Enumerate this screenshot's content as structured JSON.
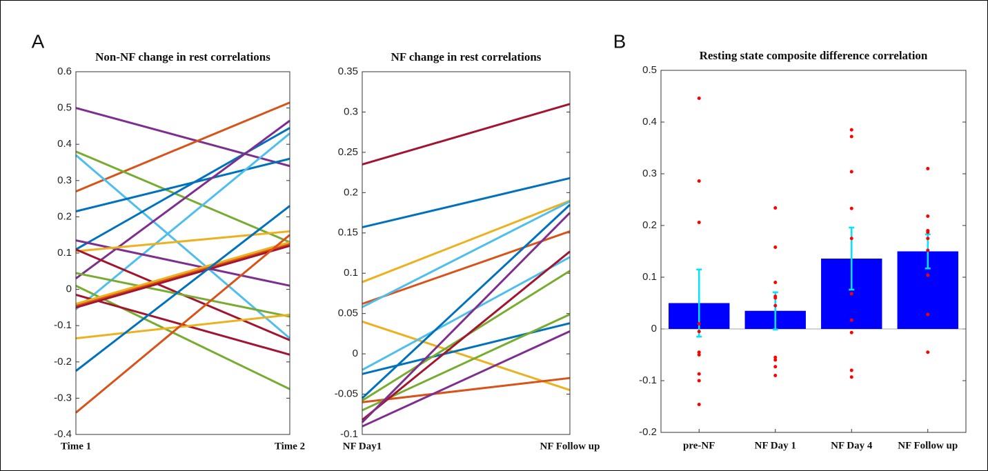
{
  "chart_data": [
    {
      "type": "line",
      "panel_label": "A",
      "title": "Non-NF change in rest correlations",
      "categories": [
        "Time 1",
        "Time 2"
      ],
      "ylim": [
        -0.4,
        0.6
      ],
      "yticks": [
        -0.4,
        -0.3,
        -0.2,
        -0.1,
        0,
        0.1,
        0.2,
        0.3,
        0.4,
        0.5,
        0.6
      ],
      "series": [
        {
          "color": "#7E2F8E",
          "values": [
            0.5,
            0.34
          ]
        },
        {
          "color": "#D95319",
          "values": [
            0.27,
            0.515
          ]
        },
        {
          "color": "#77AC30",
          "values": [
            0.38,
            0.13
          ]
        },
        {
          "color": "#4DBEEE",
          "values": [
            0.37,
            -0.135
          ]
        },
        {
          "color": "#0072BD",
          "values": [
            0.215,
            0.36
          ]
        },
        {
          "color": "#0072BD",
          "values": [
            0.11,
            0.445
          ]
        },
        {
          "color": "#7E2F8E",
          "values": [
            0.03,
            0.465
          ]
        },
        {
          "color": "#4DBEEE",
          "values": [
            -0.055,
            0.43
          ]
        },
        {
          "color": "#7E2F8E",
          "values": [
            0.135,
            0.01
          ]
        },
        {
          "color": "#EDB120",
          "values": [
            0.105,
            0.16
          ]
        },
        {
          "color": "#A2142F",
          "values": [
            0.11,
            -0.14
          ]
        },
        {
          "color": "#77AC30",
          "values": [
            0.045,
            -0.075
          ]
        },
        {
          "color": "#77AC30",
          "values": [
            0.01,
            -0.275
          ]
        },
        {
          "color": "#A2142F",
          "values": [
            -0.015,
            -0.18
          ]
        },
        {
          "color": "#D95319",
          "values": [
            -0.045,
            0.125
          ]
        },
        {
          "color": "#EDB120",
          "values": [
            -0.04,
            0.13
          ]
        },
        {
          "color": "#A2142F",
          "values": [
            -0.05,
            0.12
          ]
        },
        {
          "color": "#EDB120",
          "values": [
            -0.135,
            -0.07
          ]
        },
        {
          "color": "#0072BD",
          "values": [
            -0.225,
            0.23
          ]
        },
        {
          "color": "#D95319",
          "values": [
            -0.34,
            0.15
          ]
        }
      ]
    },
    {
      "type": "line",
      "title": "NF change in rest correlations",
      "categories": [
        "NF Day1",
        "NF Follow up"
      ],
      "ylim": [
        -0.1,
        0.35
      ],
      "yticks": [
        -0.1,
        -0.05,
        0,
        0.05,
        0.1,
        0.15,
        0.2,
        0.25,
        0.3,
        0.35
      ],
      "series": [
        {
          "color": "#A2142F",
          "values": [
            0.235,
            0.31
          ]
        },
        {
          "color": "#0072BD",
          "values": [
            0.157,
            0.218
          ]
        },
        {
          "color": "#EDB120",
          "values": [
            0.089,
            0.19
          ]
        },
        {
          "color": "#D95319",
          "values": [
            0.062,
            0.152
          ]
        },
        {
          "color": "#4DBEEE",
          "values": [
            0.058,
            0.189
          ]
        },
        {
          "color": "#EDB120",
          "values": [
            0.04,
            -0.045
          ]
        },
        {
          "color": "#4DBEEE",
          "values": [
            -0.02,
            0.12
          ]
        },
        {
          "color": "#0072BD",
          "values": [
            -0.025,
            0.038
          ]
        },
        {
          "color": "#0072BD",
          "values": [
            -0.055,
            0.185
          ]
        },
        {
          "color": "#77AC30",
          "values": [
            -0.058,
            0.103
          ]
        },
        {
          "color": "#D95319",
          "values": [
            -0.06,
            -0.03
          ]
        },
        {
          "color": "#77AC30",
          "values": [
            -0.07,
            0.049
          ]
        },
        {
          "color": "#A2142F",
          "values": [
            -0.082,
            0.127
          ]
        },
        {
          "color": "#7E2F8E",
          "values": [
            -0.085,
            0.175
          ]
        },
        {
          "color": "#7E2F8E",
          "values": [
            -0.09,
            0.028
          ]
        }
      ]
    },
    {
      "type": "bar",
      "panel_label": "B",
      "title": "Resting state composite difference correlation",
      "categories": [
        "pre-NF",
        "NF Day 1",
        "NF Day 4",
        "NF Follow up"
      ],
      "values": [
        0.05,
        0.035,
        0.136,
        0.15
      ],
      "color": "#0000FF",
      "errors": [
        0.065,
        0.036,
        0.06,
        0.033
      ],
      "error_color": "#00E5FF",
      "points": [
        [
          0.446,
          0.286,
          0.206,
          0.01,
          -0.005,
          -0.045,
          -0.05,
          -0.087,
          -0.1,
          -0.146
        ],
        [
          0.234,
          0.158,
          0.09,
          0.063,
          0.06,
          0.045,
          -0.055,
          -0.06,
          -0.073,
          -0.09
        ],
        [
          0.385,
          0.372,
          0.304,
          0.233,
          0.175,
          0.068,
          0.017,
          -0.007,
          -0.08,
          -0.093
        ],
        [
          0.31,
          0.218,
          0.19,
          0.187,
          0.175,
          0.152,
          0.104,
          0.028,
          -0.045
        ]
      ],
      "point_color": "#FF0000",
      "ylim": [
        -0.2,
        0.5
      ],
      "yticks": [
        -0.2,
        -0.1,
        0,
        0.1,
        0.2,
        0.3,
        0.4,
        0.5
      ]
    }
  ]
}
